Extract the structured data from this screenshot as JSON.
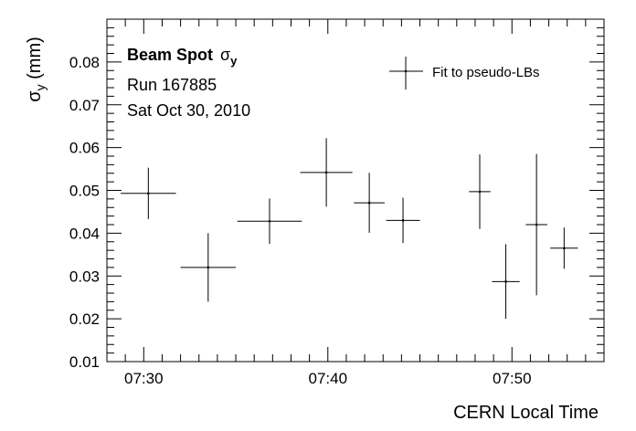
{
  "chart_data": {
    "type": "scatter",
    "title": "",
    "xlabel": "CERN Local Time",
    "ylabel_main": "σ",
    "ylabel_sub": "y",
    "ylabel_unit": "(mm)",
    "xlim": [
      "07:28:00",
      "07:55:00"
    ],
    "ylim": [
      0.01,
      0.09
    ],
    "x_ticks": [
      "07:30",
      "07:40",
      "07:50"
    ],
    "y_ticks": [
      "0.01",
      "0.02",
      "0.03",
      "0.04",
      "0.05",
      "0.06",
      "0.07",
      "0.08"
    ],
    "grid": false,
    "legend": {
      "position": "top-right",
      "entries": [
        "Fit to pseudo-LBs"
      ]
    },
    "annotations": {
      "title_bold": "Beam Spot",
      "title_symbol": "σ",
      "title_subscript": "y",
      "run": "Run 167885",
      "date": "Sat Oct 30, 2010"
    },
    "series": [
      {
        "name": "Fit to pseudo-LBs",
        "points": [
          {
            "x": "07:30:15",
            "y": 0.0493,
            "x_lo": "07:28:45",
            "x_hi": "07:31:45",
            "y_err": 0.006
          },
          {
            "x": "07:33:30",
            "y": 0.032,
            "x_lo": "07:32:00",
            "x_hi": "07:35:00",
            "y_err": 0.008
          },
          {
            "x": "07:36:50",
            "y": 0.0428,
            "x_lo": "07:35:05",
            "x_hi": "07:38:35",
            "y_err": 0.0053
          },
          {
            "x": "07:39:55",
            "y": 0.0542,
            "x_lo": "07:38:30",
            "x_hi": "07:41:20",
            "y_err": 0.008
          },
          {
            "x": "07:42:15",
            "y": 0.0471,
            "x_lo": "07:41:25",
            "x_hi": "07:43:05",
            "y_err": 0.007
          },
          {
            "x": "07:44:05",
            "y": 0.043,
            "x_lo": "07:43:10",
            "x_hi": "07:45:00",
            "y_err": 0.0053
          },
          {
            "x": "07:48:15",
            "y": 0.0497,
            "x_lo": "07:47:40",
            "x_hi": "07:48:50",
            "y_err": 0.0087
          },
          {
            "x": "07:49:40",
            "y": 0.0287,
            "x_lo": "07:48:55",
            "x_hi": "07:50:25",
            "y_err": 0.0087
          },
          {
            "x": "07:51:20",
            "y": 0.042,
            "x_lo": "07:50:45",
            "x_hi": "07:51:55",
            "y_err": 0.0165
          },
          {
            "x": "07:52:50",
            "y": 0.0365,
            "x_lo": "07:52:05",
            "x_hi": "07:53:35",
            "y_err": 0.0048
          }
        ]
      }
    ]
  }
}
